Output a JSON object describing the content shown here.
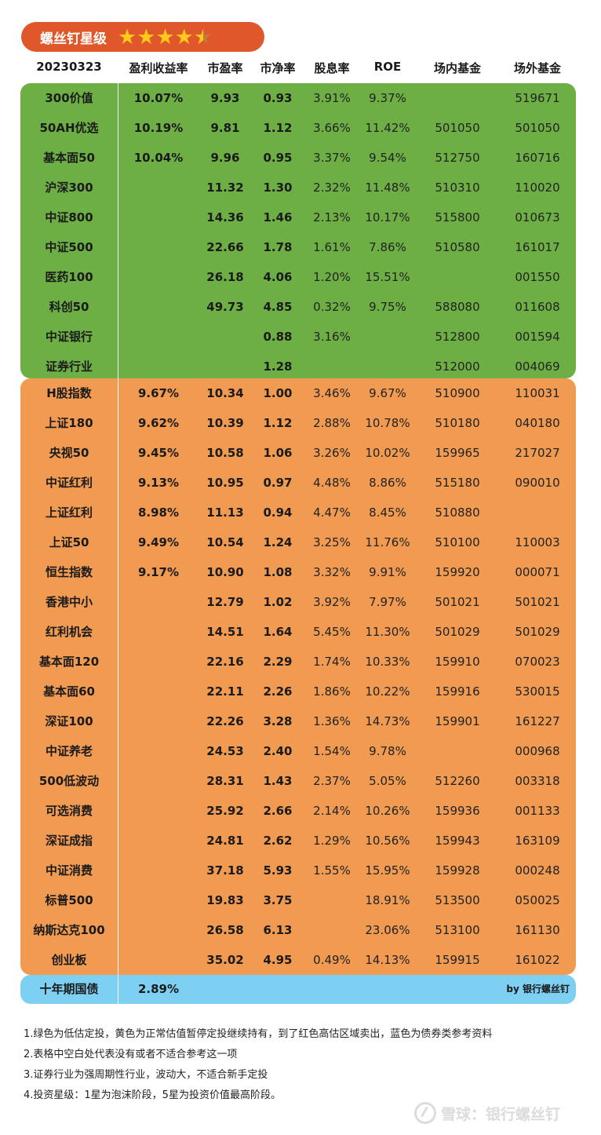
{
  "badge": {
    "title": "螺丝钉星级",
    "stars": 4.5
  },
  "header": [
    "20230323",
    "盈利收益率",
    "市盈率",
    "市净率",
    "股息率",
    "ROE",
    "场内基金",
    "场外基金"
  ],
  "green_rows": [
    [
      "300价值",
      "10.07%",
      "9.93",
      "0.93",
      "3.91%",
      "9.37%",
      "",
      "519671"
    ],
    [
      "50AH优选",
      "10.19%",
      "9.81",
      "1.12",
      "3.66%",
      "11.42%",
      "501050",
      "501050"
    ],
    [
      "基本面50",
      "10.04%",
      "9.96",
      "0.95",
      "3.37%",
      "9.54%",
      "512750",
      "160716"
    ],
    [
      "沪深300",
      "",
      "11.32",
      "1.30",
      "2.32%",
      "11.48%",
      "510310",
      "110020"
    ],
    [
      "中证800",
      "",
      "14.36",
      "1.46",
      "2.13%",
      "10.17%",
      "515800",
      "010673"
    ],
    [
      "中证500",
      "",
      "22.66",
      "1.78",
      "1.61%",
      "7.86%",
      "510580",
      "161017"
    ],
    [
      "医药100",
      "",
      "26.18",
      "4.06",
      "1.20%",
      "15.51%",
      "",
      "001550"
    ],
    [
      "科创50",
      "",
      "49.73",
      "4.85",
      "0.32%",
      "9.75%",
      "588080",
      "011608"
    ],
    [
      "中证银行",
      "",
      "",
      "0.88",
      "3.16%",
      "",
      "512800",
      "001594"
    ],
    [
      "证券行业",
      "",
      "",
      "1.28",
      "",
      "",
      "512000",
      "004069"
    ]
  ],
  "orange_rows": [
    [
      "H股指数",
      "9.67%",
      "10.34",
      "1.00",
      "3.46%",
      "9.67%",
      "510900",
      "110031"
    ],
    [
      "上证180",
      "9.62%",
      "10.39",
      "1.12",
      "2.88%",
      "10.78%",
      "510180",
      "040180"
    ],
    [
      "央视50",
      "9.45%",
      "10.58",
      "1.06",
      "3.26%",
      "10.02%",
      "159965",
      "217027"
    ],
    [
      "中证红利",
      "9.13%",
      "10.95",
      "0.97",
      "4.48%",
      "8.86%",
      "515180",
      "090010"
    ],
    [
      "上证红利",
      "8.98%",
      "11.13",
      "0.94",
      "4.47%",
      "8.45%",
      "510880",
      ""
    ],
    [
      "上证50",
      "9.49%",
      "10.54",
      "1.24",
      "3.25%",
      "11.76%",
      "510100",
      "110003"
    ],
    [
      "恒生指数",
      "9.17%",
      "10.90",
      "1.08",
      "3.32%",
      "9.91%",
      "159920",
      "000071"
    ],
    [
      "香港中小",
      "",
      "12.79",
      "1.02",
      "3.92%",
      "7.97%",
      "501021",
      "501021"
    ],
    [
      "红利机会",
      "",
      "14.51",
      "1.64",
      "5.45%",
      "11.30%",
      "501029",
      "501029"
    ],
    [
      "基本面120",
      "",
      "22.16",
      "2.29",
      "1.74%",
      "10.33%",
      "159910",
      "070023"
    ],
    [
      "基本面60",
      "",
      "22.11",
      "2.26",
      "1.86%",
      "10.22%",
      "159916",
      "530015"
    ],
    [
      "深证100",
      "",
      "22.26",
      "3.28",
      "1.36%",
      "14.73%",
      "159901",
      "161227"
    ],
    [
      "中证养老",
      "",
      "24.53",
      "2.40",
      "1.54%",
      "9.78%",
      "",
      "000968"
    ],
    [
      "500低波动",
      "",
      "28.31",
      "1.43",
      "2.37%",
      "5.05%",
      "512260",
      "003318"
    ],
    [
      "可选消费",
      "",
      "25.92",
      "2.66",
      "2.14%",
      "10.26%",
      "159936",
      "001133"
    ],
    [
      "深证成指",
      "",
      "24.81",
      "2.62",
      "1.29%",
      "10.56%",
      "159943",
      "163109"
    ],
    [
      "中证消费",
      "",
      "37.18",
      "5.93",
      "1.55%",
      "15.95%",
      "159928",
      "000248"
    ],
    [
      "标普500",
      "",
      "19.83",
      "3.75",
      "",
      "18.91%",
      "513500",
      "050025"
    ],
    [
      "纳斯达克100",
      "",
      "26.58",
      "6.13",
      "",
      "23.06%",
      "513100",
      "161130"
    ],
    [
      "创业板",
      "",
      "35.02",
      "4.95",
      "0.49%",
      "14.13%",
      "159915",
      "161022"
    ]
  ],
  "bond": {
    "label": "十年期国债",
    "value": "2.89%",
    "byline": "by 银行螺丝钉"
  },
  "notes": [
    "1.绿色为低估定投，黄色为正常估值暂停定投继续持有，到了红色高估区域卖出，蓝色为债券类参考资料",
    "2.表格中空白处代表没有或者不适合参考这一项",
    "3.证券行业为强周期性行业，波动大，不适合新手定投",
    "4.投资星级：1星为泡沫阶段，5星为投资价值最高阶段。"
  ],
  "watermark": "雪球：银行螺丝钉",
  "colors": {
    "green": "#6dae45",
    "orange": "#f09a52",
    "blue": "#7ed0f2",
    "badge": "#e0572b",
    "star": "#ffc81a"
  }
}
